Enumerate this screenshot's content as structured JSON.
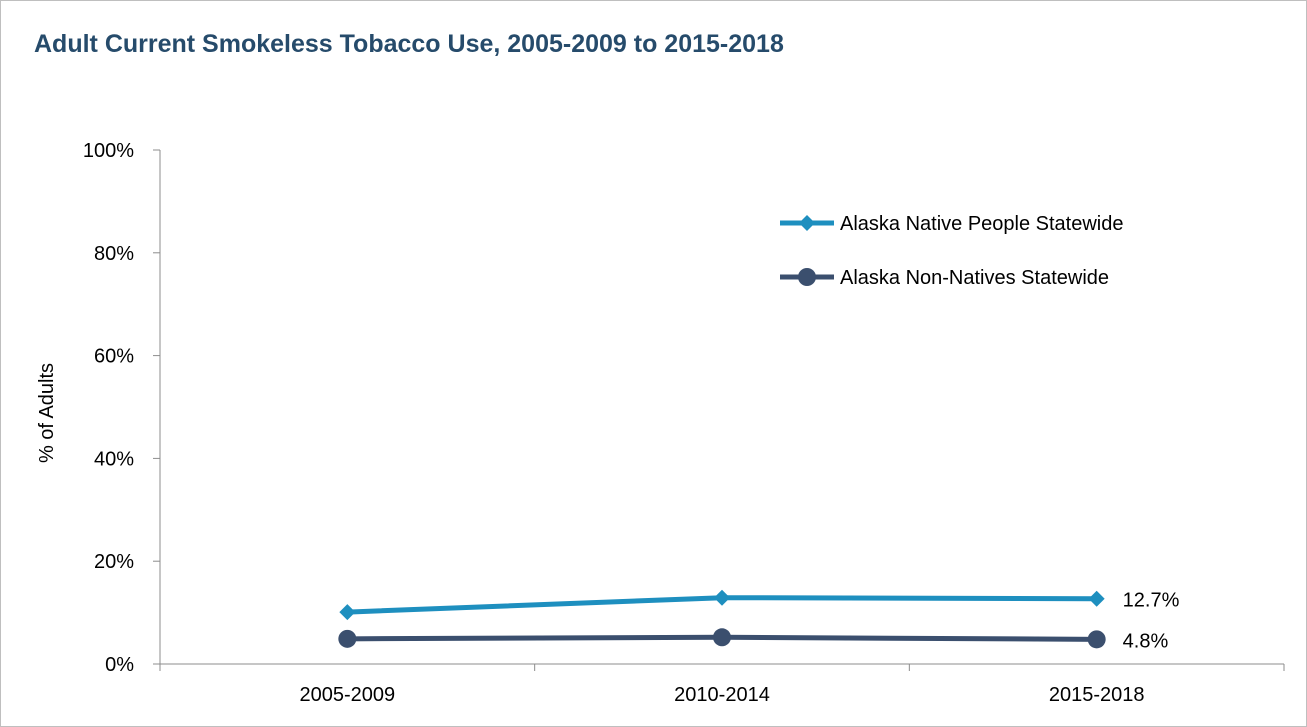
{
  "chart_data": {
    "type": "line",
    "title": "Adult Current Smokeless Tobacco Use, 2005-2009 to 2015-2018",
    "ylabel": "% of Adults",
    "xlabel": "",
    "categories": [
      "2005-2009",
      "2010-2014",
      "2015-2018"
    ],
    "ylim": [
      0,
      100
    ],
    "yticks": [
      "0%",
      "20%",
      "40%",
      "60%",
      "80%",
      "100%"
    ],
    "ytick_values": [
      0,
      20,
      40,
      60,
      80,
      100
    ],
    "grid": false,
    "legend_position": "top-right",
    "series": [
      {
        "name": "Alaska Native People Statewide",
        "values": [
          10.1,
          12.9,
          12.7
        ],
        "color": "#1e8fbf",
        "marker": "diamond",
        "end_label": "12.7%"
      },
      {
        "name": "Alaska Non-Natives Statewide",
        "values": [
          4.9,
          5.2,
          4.8
        ],
        "color": "#3b4f6e",
        "marker": "circle",
        "end_label": "4.8%"
      }
    ]
  }
}
